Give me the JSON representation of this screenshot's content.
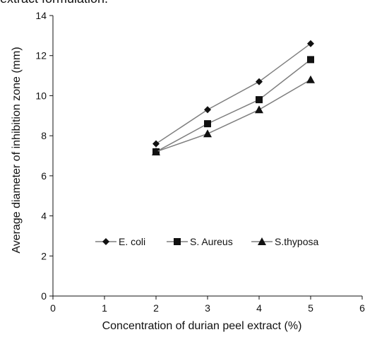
{
  "page": {
    "top_text": "extract formulation."
  },
  "chart_data": {
    "type": "line",
    "x": [
      2,
      3,
      4,
      5
    ],
    "series": [
      {
        "name": "E. coli",
        "values": [
          7.6,
          9.3,
          10.7,
          12.6
        ],
        "marker": "diamond"
      },
      {
        "name": "S. Aureus",
        "values": [
          7.2,
          8.6,
          9.8,
          11.8
        ],
        "marker": "square"
      },
      {
        "name": "S.thyposa",
        "values": [
          7.2,
          8.1,
          9.3,
          10.8
        ],
        "marker": "triangle"
      }
    ],
    "xlabel": "Concentration of durian peel extract (%)",
    "ylabel": "Average diameter of inhibition zone (mm)",
    "xlim": [
      0,
      6
    ],
    "ylim": [
      0,
      14
    ],
    "xticks": [
      0,
      1,
      2,
      3,
      4,
      5,
      6
    ],
    "yticks": [
      0,
      2,
      4,
      6,
      8,
      10,
      12,
      14
    ],
    "grid": false,
    "legend_position": "inside-lower-center",
    "line_color": "#7f7f7f",
    "marker_color": "#111111",
    "axis_color": "#111111"
  }
}
